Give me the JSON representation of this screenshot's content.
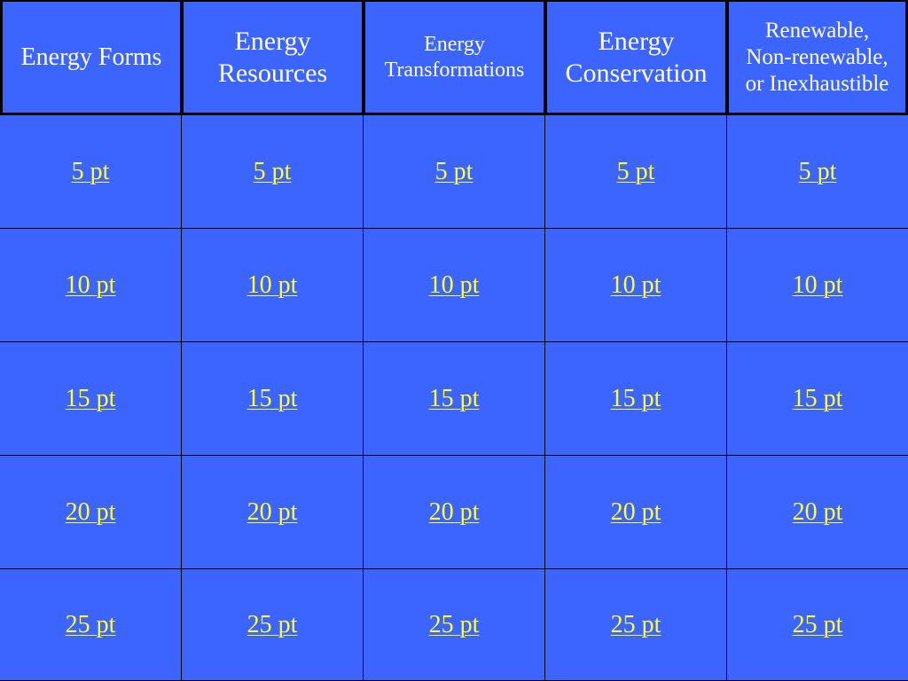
{
  "categories": [
    "Energy Forms",
    "Energy\nResources",
    "Energy\nTransformations",
    "Energy\nConservation",
    "Renewable,\nNon-renewable,\nor Inexhaustible"
  ],
  "points": [
    "5 pt",
    "10 pt",
    "15 pt",
    "20 pt",
    "25 pt"
  ],
  "colors": {
    "cell_background": "#3c64ff",
    "header_text": "#ffffff",
    "link_text": "#ffff33",
    "grid_lines": "#000000"
  }
}
